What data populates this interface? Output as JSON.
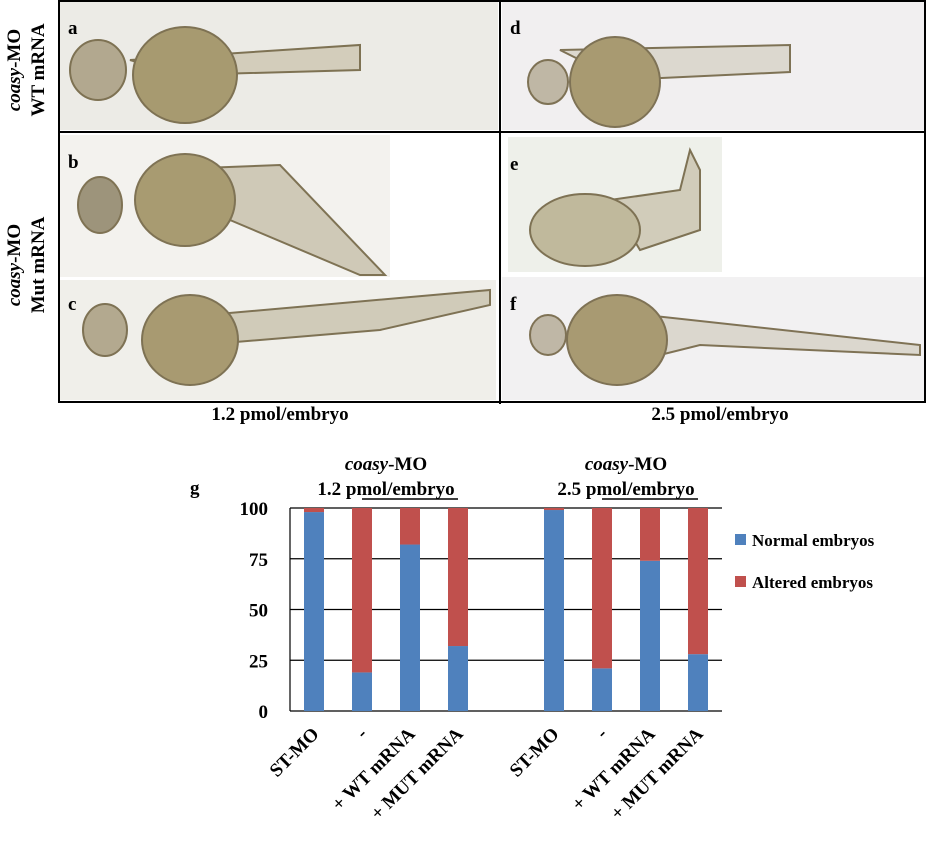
{
  "panels": [
    "a",
    "b",
    "c",
    "d",
    "e",
    "f"
  ],
  "row_labels": [
    {
      "italic": "coasy",
      "rest": "-MO",
      "line2": "WT  mRNA"
    },
    {
      "italic": "coasy",
      "rest": "-MO",
      "line2": "Mut  mRNA"
    }
  ],
  "column_labels": [
    "1.2 pmol/embryo",
    "2.5 pmol/embryo"
  ],
  "chart_data": {
    "type": "stacked-bar",
    "panel_letter": "g",
    "groups": [
      {
        "italic": "coasy",
        "rest": "-MO",
        "dose": "1.2 pmol/embryo"
      },
      {
        "italic": "coasy",
        "rest": "-MO",
        "dose": "2.5 pmol/embryo"
      }
    ],
    "categories": [
      "ST-MO",
      "-",
      "+ WT mRNA",
      "+ MUT mRNA",
      null,
      "ST-MO",
      "-",
      "+ WT mRNA",
      "+ MUT mRNA"
    ],
    "series": [
      {
        "name": "Normal embryos",
        "color": "#4f81bd",
        "values": [
          98,
          19,
          82,
          32,
          null,
          99,
          21,
          74,
          28
        ]
      },
      {
        "name": "Altered embryos",
        "color": "#c0504d",
        "values": [
          2,
          81,
          18,
          68,
          null,
          1,
          79,
          26,
          72
        ]
      }
    ],
    "ylim": [
      0,
      100
    ],
    "yticks": [
      0,
      25,
      50,
      75,
      100
    ],
    "grid": true
  }
}
